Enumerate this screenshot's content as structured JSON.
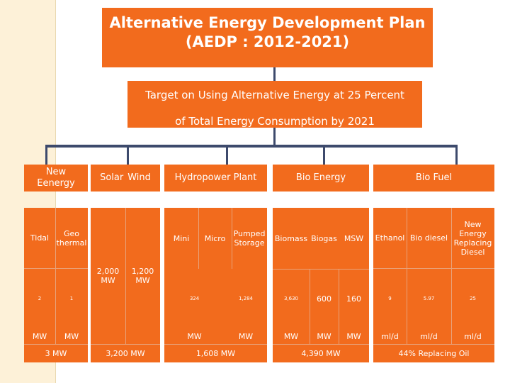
{
  "title": {
    "line1": "Alternative Energy Development Plan",
    "line2": "(AEDP : 2012-2021)"
  },
  "target": {
    "line1": "Target on Using Alternative Energy at 25 Percent",
    "line2": "of Total Energy Consumption by 2021"
  },
  "categories": {
    "new_energy": "New Eenergy",
    "solar": "Solar",
    "wind": "Wind",
    "hydropower": "Hydropower Plant",
    "bio_energy": "Bio Energy",
    "bio_fuel": "Bio Fuel"
  },
  "subs": {
    "tidal": "Tidal",
    "geo": "Geo thermal",
    "mini": "Mini",
    "micro": "Micro",
    "pumped": "Pumped Storage",
    "biomass": "Biomass",
    "biogas": "Biogas",
    "msw": "MSW",
    "ethanol": "Ethanol",
    "biodiesel": "Bio diesel",
    "newdiesel": "New Energy Replacing Diesel"
  },
  "values": {
    "solar": "2,000 MW",
    "wind": "1,200 MW",
    "tidal": "2",
    "geo": "1",
    "mini": "324",
    "pumped": "1,284",
    "biomass": "3,630",
    "biogas": "600",
    "msw": "160",
    "ethanol": "9",
    "biodiesel": "5.97",
    "newdiesel": "25"
  },
  "units": {
    "tidal": "MW",
    "geo": "MW",
    "mini": "MW",
    "pumped": "MW",
    "biomass": "MW",
    "biogas": "MW",
    "msw": "MW",
    "ethanol": "ml/d",
    "biodiesel": "ml/d",
    "newdiesel": "ml/d"
  },
  "totals": {
    "new_energy": "3 MW",
    "solar_wind": "3,200 MW",
    "hydropower": "1,608 MW",
    "bio_energy": "4,390 MW",
    "bio_fuel": "44% Replacing Oil"
  },
  "colors": {
    "accent": "#f26b1d",
    "connector": "#3d4a6c",
    "stripe": "#fdf1d8"
  }
}
